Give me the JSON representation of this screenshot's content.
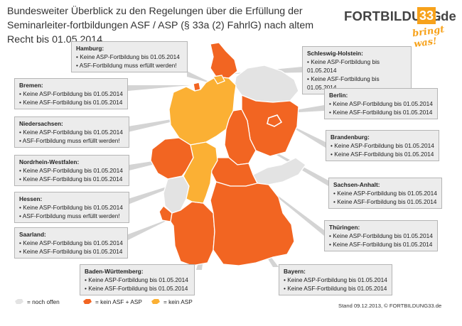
{
  "title": "Bundesweiter Überblick zu den Regelungen über die Erfüllung der Seminarleiter-fortbildungen ASF / ASP (§ 33a (2) FahrlG) nach altem Recht bis 01.05.2014",
  "logo": {
    "name": "FORTBILDUNG",
    "number": "33",
    "tld": ".de",
    "slogan": "bringt was!"
  },
  "states": {
    "hamburg": {
      "name": "Hamburg:",
      "lines": [
        "• Keine ASP-Fortbildung bis 01.05.2014",
        "• ASF-Fortbildung muss erfüllt werden!"
      ]
    },
    "schleswig": {
      "name": "Schleswig-Holstein:",
      "lines": [
        "• Keine ASP-Fortbildung bis 01.05.2014",
        "• Keine ASF-Fortbildung bis 01.05.2014"
      ]
    },
    "bremen": {
      "name": "Bremen:",
      "lines": [
        "• Keine ASP-Fortbildung bis 01.05.2014",
        "• Keine ASF-Fortbildung bis 01.05.2014"
      ]
    },
    "berlin": {
      "name": "Berlin:",
      "lines": [
        "• Keine ASP-Fortbildung bis 01.05.2014",
        "• Keine ASF-Fortbildung bis 01.05.2014"
      ]
    },
    "niedersachsen": {
      "name": "Niedersachsen:",
      "lines": [
        "• Keine ASP-Fortbildung bis 01.05.2014",
        "• ASF-Fortbildung muss erfüllt werden!"
      ]
    },
    "brandenburg": {
      "name": "Brandenburg:",
      "lines": [
        "• Keine ASP-Fortbildung bis 01.05.2014",
        "• Keine ASF-Fortbildung bis 01.05.2014"
      ]
    },
    "nrw": {
      "name": "Nordrhein-Westfalen:",
      "lines": [
        "• Keine ASP-Fortbildung bis 01.05.2014",
        "• Keine ASF-Fortbildung bis 01.05.2014"
      ]
    },
    "sachsenanhalt": {
      "name": "Sachsen-Anhalt:",
      "lines": [
        "• Keine ASP-Fortbildung bis 01.05.2014",
        "• Keine ASF-Fortbildung bis 01.05.2014"
      ]
    },
    "hessen": {
      "name": "Hessen:",
      "lines": [
        "• Keine ASP-Fortbildung bis 01.05.2014",
        "• ASF-Fortbildung muss erfüllt werden!"
      ]
    },
    "thueringen": {
      "name": "Thüringen:",
      "lines": [
        "• Keine ASP-Fortbildung bis 01.05.2014",
        "• Keine ASF-Fortbildung bis 01.05.2014"
      ]
    },
    "saarland": {
      "name": "Saarland:",
      "lines": [
        "• Keine ASP-Fortbildung bis 01.05.2014",
        "• Keine ASF-Fortbildung bis 01.05.2014"
      ]
    },
    "bw": {
      "name": "Baden-Württemberg:",
      "lines": [
        "• Keine ASP-Fortbildung bis 01.05.2014",
        "• Keine ASF-Fortbildung bis 01.05.2014"
      ]
    },
    "bayern": {
      "name": "Bayern:",
      "lines": [
        "• Keine ASP-Fortbildung bis 01.05.2014",
        "• Keine ASF-Fortbildung bis 01.05.2014"
      ]
    }
  },
  "legend": {
    "open": "= noch offen",
    "asf_asp": "= kein ASF + ASP",
    "asp": "= kein ASP"
  },
  "footer": "Stand 09.12.2013, © FORTBILDUNG33.de",
  "colors": {
    "orange_dark": "#f26522",
    "orange_light": "#fbb034",
    "gray": "#e3e3e3",
    "box_bg": "#ececec"
  }
}
